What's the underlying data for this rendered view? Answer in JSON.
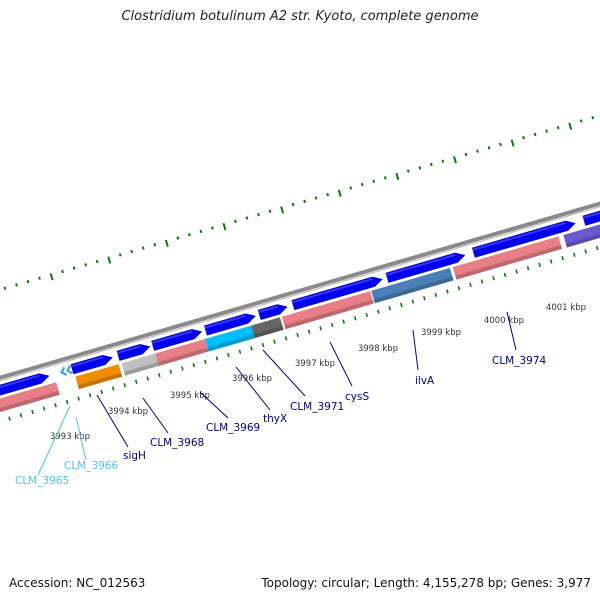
{
  "title": "Clostridium botulinum A2 str. Kyoto, complete genome",
  "accession_text": "Accession: NC_012563",
  "stats_text": "Topology: circular; Length: 4,155,278 bp; Genes: 3,977",
  "colors": {
    "forward_cds": "#0000ee",
    "reverse_cds": "#e87f86",
    "highlight_cyan": "#00bfff",
    "highlight_gray": "#666666",
    "highlight_steel": "#4a7fb8",
    "highlight_orange": "#f08c00",
    "highlight_lightgray": "#c0c0c0",
    "highlight_purple": "#6a5acd",
    "tick_color": "#0a7a0a",
    "label_dark": "#00008b",
    "label_light": "#4cc3e6"
  },
  "ruler_labels": [
    "3993 kbp",
    "3994 kbp",
    "3995 kbp",
    "3996 kbp",
    "3997 kbp",
    "3998 kbp",
    "3999 kbp",
    "4000 kbp",
    "4001 kbp"
  ],
  "gene_labels": [
    {
      "text": "CLM_3965",
      "tone": "light"
    },
    {
      "text": "CLM_3966",
      "tone": "light"
    },
    {
      "text": "sigH",
      "tone": "dark"
    },
    {
      "text": "CLM_3968",
      "tone": "dark"
    },
    {
      "text": "CLM_3969",
      "tone": "dark"
    },
    {
      "text": "thyX",
      "tone": "dark"
    },
    {
      "text": "CLM_3971",
      "tone": "dark"
    },
    {
      "text": "cysS",
      "tone": "dark"
    },
    {
      "text": "ilvA",
      "tone": "dark"
    },
    {
      "text": "CLM_3974",
      "tone": "dark"
    }
  ]
}
